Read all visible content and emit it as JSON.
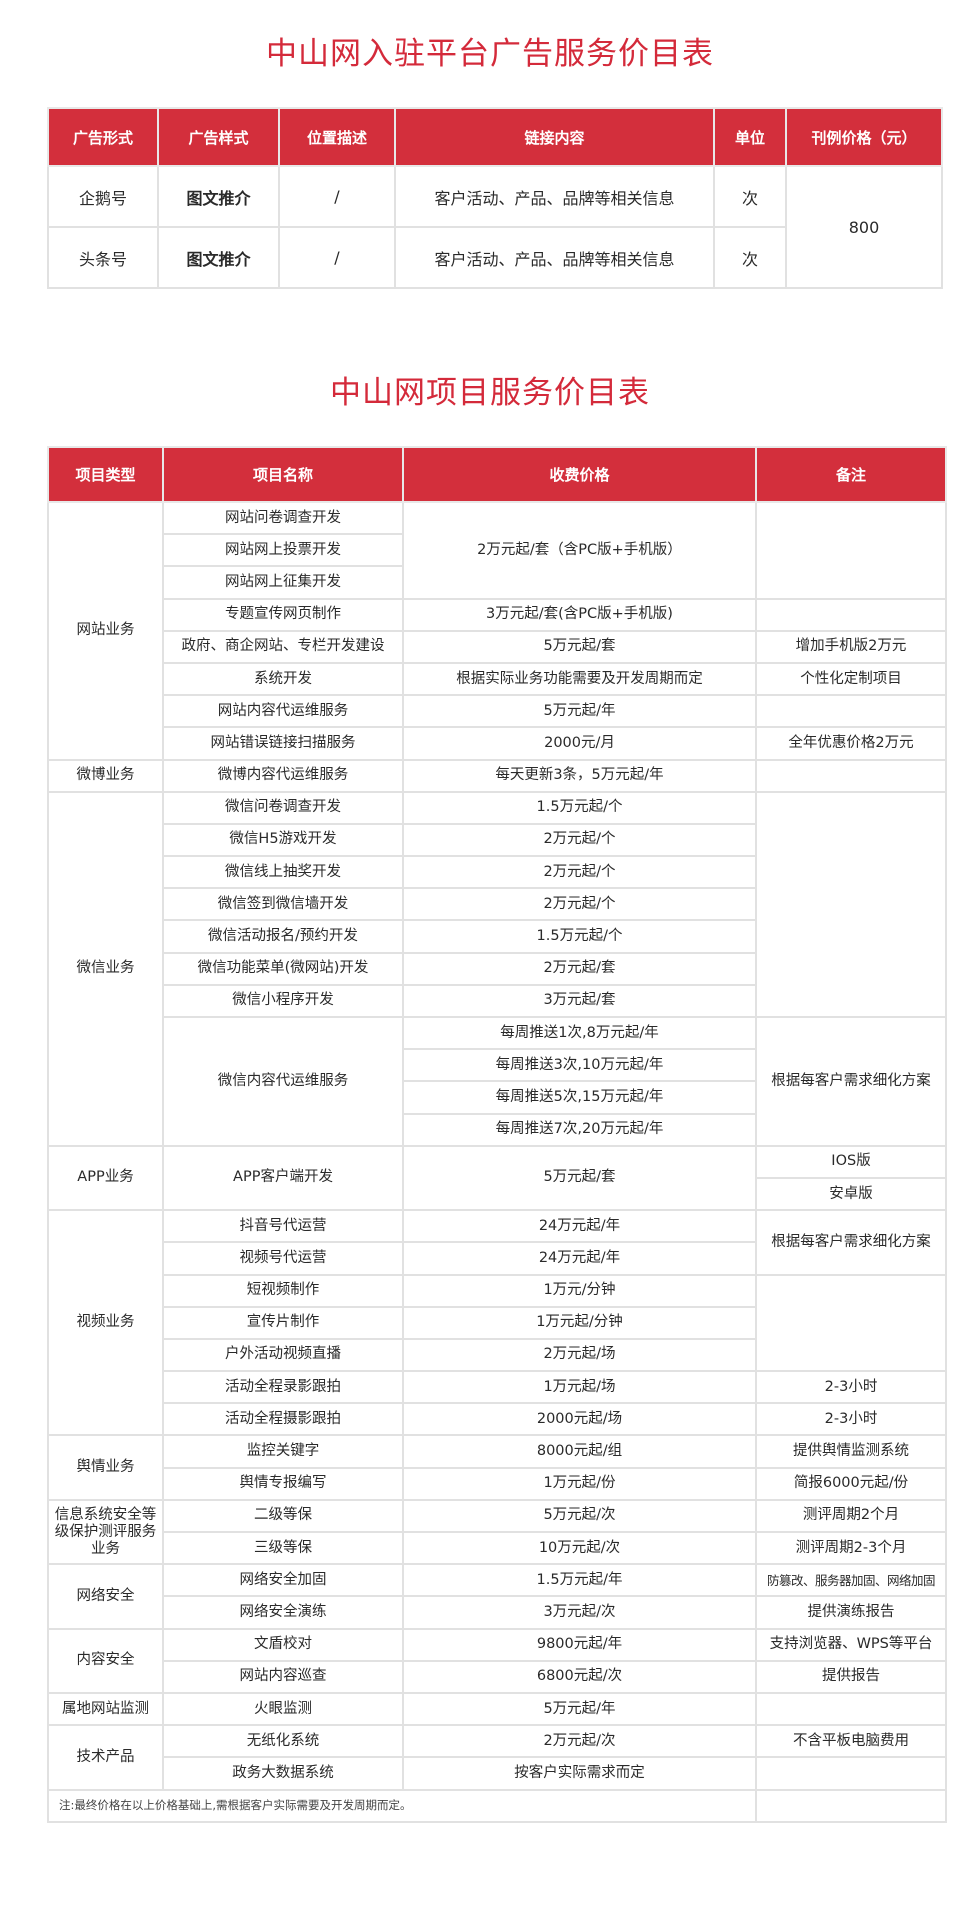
{
  "ad_table": {
    "title": "中山网入驻平台广告服务价目表",
    "headers": [
      "广告形式",
      "广告样式",
      "位置描述",
      "链接内容",
      "单位",
      "刊例价格（元）"
    ],
    "rows": [
      {
        "form": "企鹅号",
        "style": "图文推介",
        "position": "/",
        "content": "客户活动、产品、品牌等相关信息",
        "unit": "次"
      },
      {
        "form": "头条号",
        "style": "图文推介",
        "position": "/",
        "content": "客户活动、产品、品牌等相关信息",
        "unit": "次"
      }
    ],
    "price": "800"
  },
  "service_table": {
    "title": "中山网项目服务价目表",
    "headers": [
      "项目类型",
      "项目名称",
      "收费价格",
      "备注"
    ],
    "rows": [
      [
        {
          "t": "网站业务",
          "rs": 8
        },
        {
          "t": "网站问卷调查开发"
        },
        {
          "t": "2万元起/套（含PC版+手机版）",
          "rs": 3
        },
        {
          "t": "",
          "rs": 3
        }
      ],
      [
        {
          "t": "网站网上投票开发"
        }
      ],
      [
        {
          "t": "网站网上征集开发"
        }
      ],
      [
        {
          "t": "专题宣传网页制作"
        },
        {
          "t": "3万元起/套(含PC版+手机版)"
        },
        {
          "t": ""
        }
      ],
      [
        {
          "t": "政府、商企网站、专栏开发建设"
        },
        {
          "t": "5万元起/套"
        },
        {
          "t": "增加手机版2万元"
        }
      ],
      [
        {
          "t": "系统开发"
        },
        {
          "t": "根据实际业务功能需要及开发周期而定"
        },
        {
          "t": "个性化定制项目"
        }
      ],
      [
        {
          "t": "网站内容代运维服务"
        },
        {
          "t": "5万元起/年"
        },
        {
          "t": ""
        }
      ],
      [
        {
          "t": "网站错误链接扫描服务"
        },
        {
          "t": "2000元/月"
        },
        {
          "t": "全年优惠价格2万元"
        }
      ],
      [
        {
          "t": "微博业务"
        },
        {
          "t": "微博内容代运维服务"
        },
        {
          "t": "每天更新3条，5万元起/年"
        },
        {
          "t": ""
        }
      ],
      [
        {
          "t": "微信业务",
          "rs": 11
        },
        {
          "t": "微信问卷调查开发"
        },
        {
          "t": "1.5万元起/个"
        },
        {
          "t": "",
          "rs": 7
        }
      ],
      [
        {
          "t": "微信H5游戏开发"
        },
        {
          "t": "2万元起/个"
        }
      ],
      [
        {
          "t": "微信线上抽奖开发"
        },
        {
          "t": "2万元起/个"
        }
      ],
      [
        {
          "t": "微信签到微信墙开发"
        },
        {
          "t": "2万元起/个"
        }
      ],
      [
        {
          "t": "微信活动报名/预约开发"
        },
        {
          "t": "1.5万元起/个"
        }
      ],
      [
        {
          "t": "微信功能菜单(微网站)开发"
        },
        {
          "t": "2万元起/套"
        }
      ],
      [
        {
          "t": "微信小程序开发"
        },
        {
          "t": "3万元起/套"
        }
      ],
      [
        {
          "t": "微信内容代运维服务",
          "rs": 4
        },
        {
          "t": "每周推送1次,8万元起/年"
        },
        {
          "t": "根据每客户需求细化方案",
          "rs": 4
        }
      ],
      [
        {
          "t": "每周推送3次,10万元起/年"
        }
      ],
      [
        {
          "t": "每周推送5次,15万元起/年"
        }
      ],
      [
        {
          "t": "每周推送7次,20万元起/年"
        }
      ],
      [
        {
          "t": "APP业务",
          "rs": 2
        },
        {
          "t": "APP客户端开发",
          "rs": 2
        },
        {
          "t": "5万元起/套",
          "rs": 2
        },
        {
          "t": "IOS版"
        }
      ],
      [
        {
          "t": "安卓版"
        }
      ],
      [
        {
          "t": "视频业务",
          "rs": 7
        },
        {
          "t": "抖音号代运营"
        },
        {
          "t": "24万元起/年"
        },
        {
          "t": "根据每客户需求细化方案",
          "rs": 2
        }
      ],
      [
        {
          "t": "视频号代运营"
        },
        {
          "t": "24万元起/年"
        }
      ],
      [
        {
          "t": "短视频制作"
        },
        {
          "t": "1万元/分钟"
        },
        {
          "t": "",
          "rs": 3
        }
      ],
      [
        {
          "t": "宣传片制作"
        },
        {
          "t": "1万元起/分钟"
        }
      ],
      [
        {
          "t": "户外活动视频直播"
        },
        {
          "t": "2万元起/场"
        }
      ],
      [
        {
          "t": "活动全程录影跟拍"
        },
        {
          "t": "1万元起/场"
        },
        {
          "t": "2-3小时"
        }
      ],
      [
        {
          "t": "活动全程摄影跟拍"
        },
        {
          "t": "2000元起/场"
        },
        {
          "t": "2-3小时"
        }
      ],
      [
        {
          "t": "舆情业务",
          "rs": 2
        },
        {
          "t": "监控关键字"
        },
        {
          "t": "8000元起/组"
        },
        {
          "t": "提供舆情监测系统"
        }
      ],
      [
        {
          "t": "舆情专报编写"
        },
        {
          "t": "1万元起/份"
        },
        {
          "t": "简报6000元起/份"
        }
      ],
      [
        {
          "t": "信息系统安全等级保护测评服务业务",
          "rs": 2
        },
        {
          "t": "二级等保"
        },
        {
          "t": "5万元起/次"
        },
        {
          "t": "测评周期2个月"
        }
      ],
      [
        {
          "t": "三级等保"
        },
        {
          "t": "10万元起/次"
        },
        {
          "t": "测评周期2-3个月"
        }
      ],
      [
        {
          "t": "网络安全",
          "rs": 2
        },
        {
          "t": "网络安全加固"
        },
        {
          "t": "1.5万元起/年"
        },
        {
          "t": "防篡改、服务器加固、网络加固",
          "small": true
        }
      ],
      [
        {
          "t": "网络安全演练"
        },
        {
          "t": "3万元起/次"
        },
        {
          "t": "提供演练报告"
        }
      ],
      [
        {
          "t": "内容安全",
          "rs": 2
        },
        {
          "t": "文盾校对"
        },
        {
          "t": "9800元起/年"
        },
        {
          "t": "支持浏览器、WPS等平台"
        }
      ],
      [
        {
          "t": "网站内容巡查"
        },
        {
          "t": "6800元起/次"
        },
        {
          "t": "提供报告"
        }
      ],
      [
        {
          "t": "属地网站监测"
        },
        {
          "t": "火眼监测"
        },
        {
          "t": "5万元起/年"
        },
        {
          "t": ""
        }
      ],
      [
        {
          "t": "技术产品",
          "rs": 2
        },
        {
          "t": "无纸化系统"
        },
        {
          "t": "2万元起/次"
        },
        {
          "t": "不含平板电脑费用"
        }
      ],
      [
        {
          "t": "政务大数据系统"
        },
        {
          "t": "按客户实际需求而定"
        },
        {
          "t": ""
        }
      ]
    ],
    "footnote": "注:最终价格在以上价格基础上,需根据客户实际需要及开发周期而定。"
  },
  "colors": {
    "header_red": "#d32f3c",
    "title_red": "#d42a3a",
    "border": "#e1e1e1"
  }
}
